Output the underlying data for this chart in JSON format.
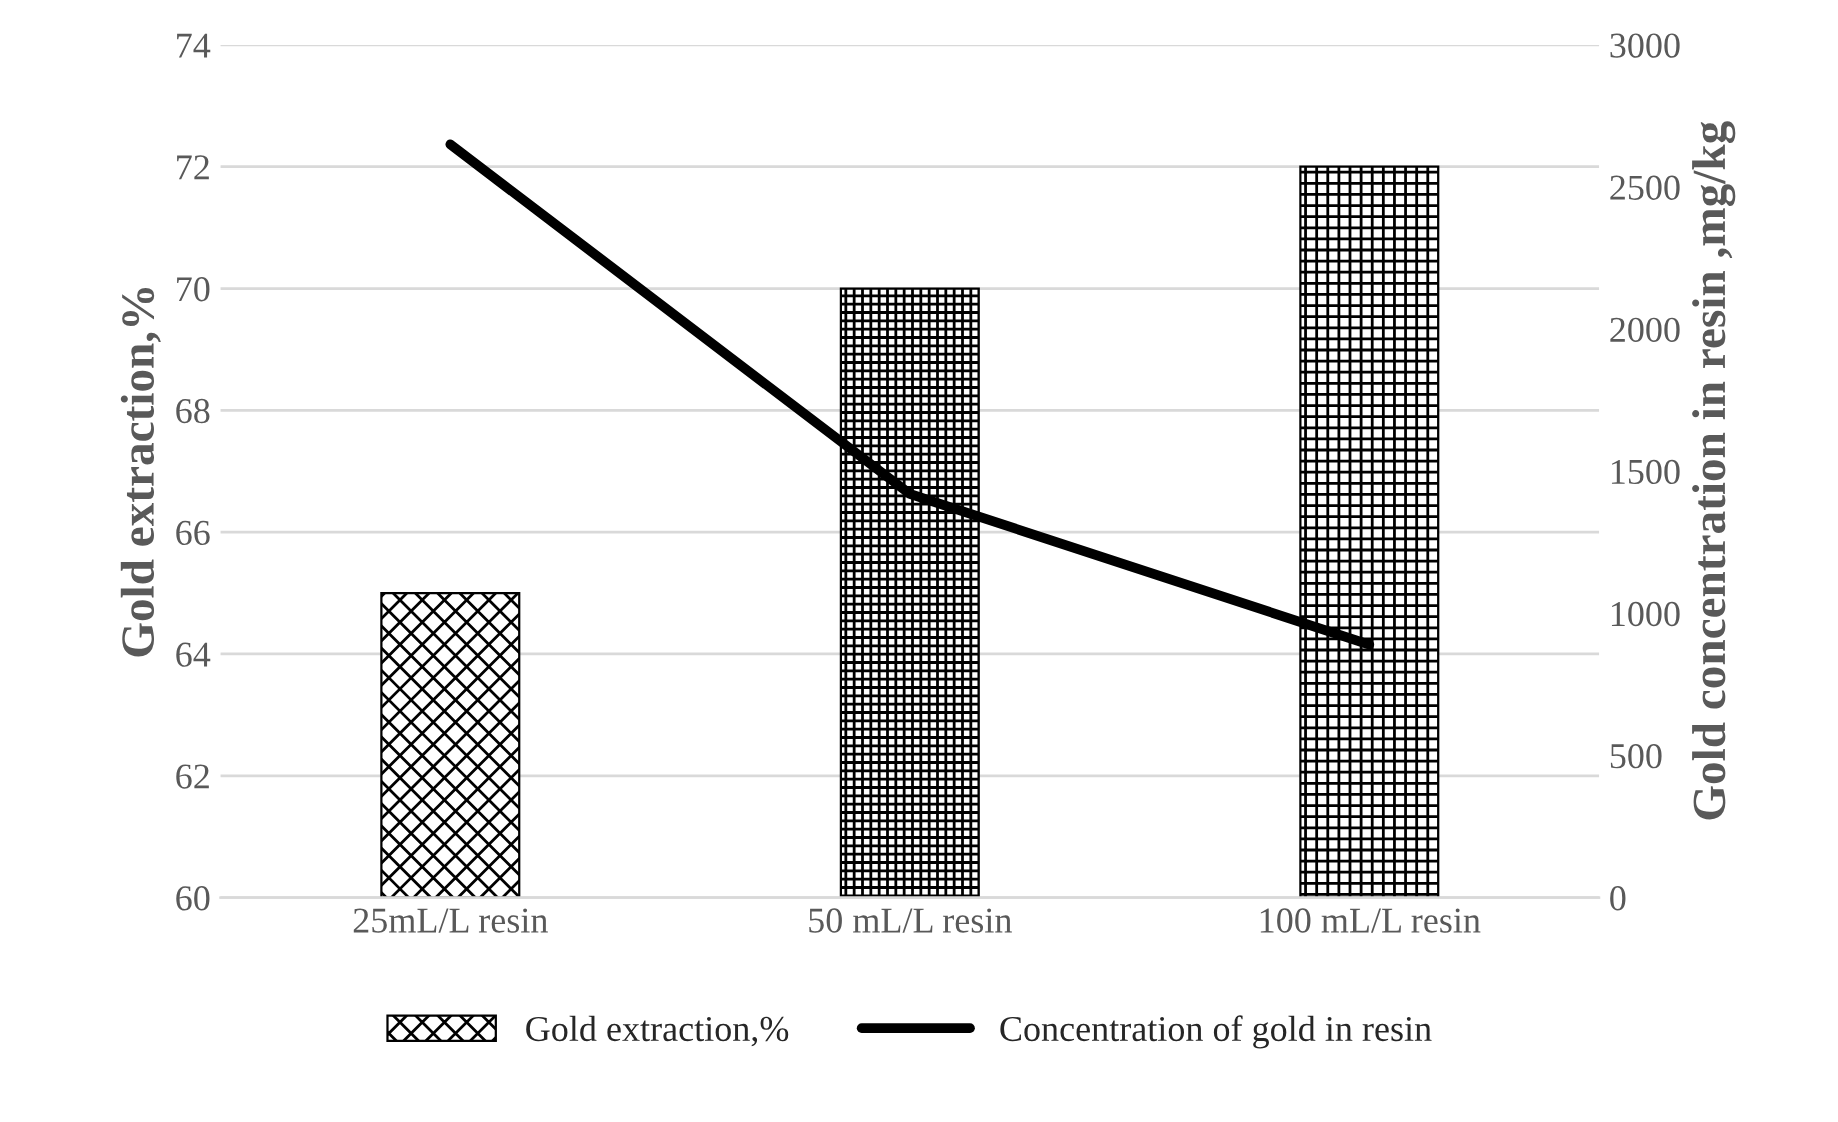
{
  "chart_data": {
    "type": "bar",
    "categories": [
      "25mL/L resin",
      "50 mL/L resin",
      "100 mL/L resin"
    ],
    "ylabel": "Gold extraction,%",
    "y2label": "Gold concentration in resin ,mg/kg",
    "ylim": [
      60,
      74
    ],
    "yticks": [
      60,
      62,
      64,
      66,
      68,
      70,
      72,
      74
    ],
    "y2lim": [
      0,
      3000
    ],
    "y2ticks": [
      0,
      500,
      1000,
      1500,
      2000,
      2500,
      3000
    ],
    "grid": "y",
    "legend": "bottom",
    "series": [
      {
        "name": "Gold extraction,%",
        "color": "#000000",
        "values": [
          65,
          70,
          72
        ]
      },
      {
        "name": "Concentration of gold in resin",
        "type": "line",
        "axis": "y2",
        "color": "#000000",
        "values": [
          2650,
          1420,
          890
        ]
      }
    ]
  }
}
